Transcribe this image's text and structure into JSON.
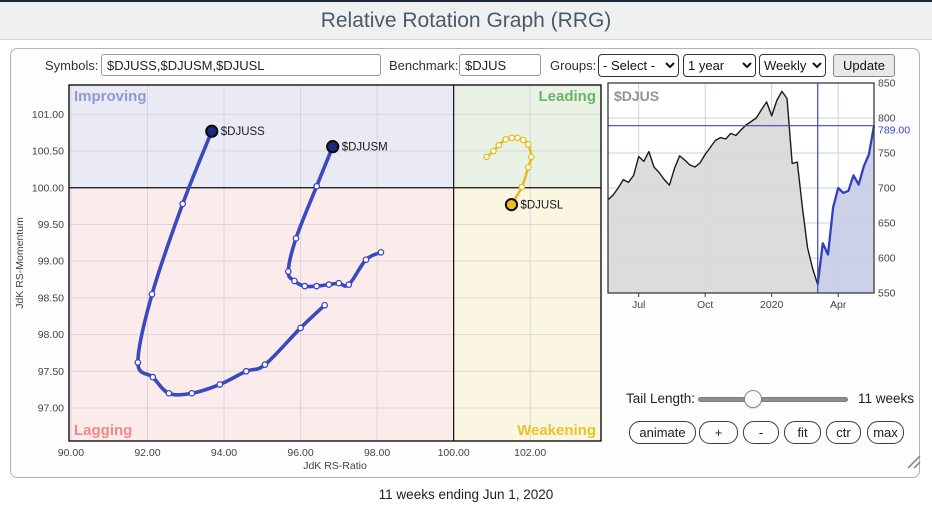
{
  "header": {
    "title": "Relative Rotation Graph (RRG)"
  },
  "toolbar": {
    "symbols_label": "Symbols:",
    "symbols_value": "$DJUSS,$DJUSM,$DJUSL",
    "benchmark_label": "Benchmark:",
    "benchmark_value": "$DJUS",
    "groups_label": "Groups:",
    "groups_value": "- Select -",
    "period_value": "1 year",
    "frequency_value": "Weekly",
    "update_label": "Update"
  },
  "controls": {
    "tail_label": "Tail Length:",
    "tail_value": "11 weeks",
    "buttons": [
      "animate",
      "+",
      "-",
      "fit",
      "ctr",
      "max"
    ]
  },
  "footer": {
    "caption": "11 weeks ending Jun 1, 2020"
  },
  "colors": {
    "accent_blue": "#3848c0",
    "trail_blue": "#3949c0",
    "trail_blue_head": "#1b2a80",
    "trail_yellow": "#e7bc1e",
    "trail_yellow_head": "#eebe18",
    "grid": "#cdd0da",
    "price_black": "#1a1a1a",
    "price_gray_fill": "#d8d8d8",
    "price_blue": "#3340bb",
    "price_blue_fill": "#c7cbe6"
  },
  "chart_data": [
    {
      "type": "scatter",
      "name": "rrg",
      "xlabel": "JdK RS-Ratio",
      "ylabel": "JdK RS-Momentum",
      "xlim": [
        89.95,
        103.85
      ],
      "ylim": [
        96.55,
        101.4
      ],
      "xticks": [
        "90.00",
        "92.00",
        "94.00",
        "96.00",
        "98.00",
        "100.00",
        "102.00"
      ],
      "yticks": [
        "97.00",
        "97.50",
        "98.00",
        "98.50",
        "99.00",
        "99.50",
        "100.00",
        "100.50",
        "101.00"
      ],
      "center_x": 100,
      "center_y": 100,
      "quadrants": [
        {
          "name": "Improving",
          "corner": "top-left",
          "bg": "#e9eaf3",
          "label_color": "#9098d6"
        },
        {
          "name": "Leading",
          "corner": "top-right",
          "bg": "#eaf2e5",
          "label_color": "#67b567"
        },
        {
          "name": "Lagging",
          "corner": "bottom-left",
          "bg": "#fbebeb",
          "label_color": "#f08a8a"
        },
        {
          "name": "Weakening",
          "corner": "bottom-right",
          "bg": "#fbf6e2",
          "label_color": "#e9c428"
        }
      ],
      "series": [
        {
          "name": "$DJUSS",
          "color": "#3949c0",
          "head_color": "#1b2a80",
          "line_width": 3.6,
          "points": [
            [
              96.63,
              98.4
            ],
            [
              96.0,
              98.09
            ],
            [
              95.07,
              97.59
            ],
            [
              94.58,
              97.5
            ],
            [
              93.89,
              97.32
            ],
            [
              93.16,
              97.2
            ],
            [
              92.56,
              97.2
            ],
            [
              92.14,
              97.42
            ],
            [
              91.75,
              97.62
            ],
            [
              92.12,
              98.55
            ],
            [
              92.92,
              99.78
            ],
            [
              93.68,
              100.77
            ]
          ]
        },
        {
          "name": "$DJUSM",
          "color": "#3949c0",
          "head_color": "#1b2a80",
          "line_width": 3.6,
          "points": [
            [
              98.1,
              99.12
            ],
            [
              97.71,
              99.02
            ],
            [
              97.26,
              98.68
            ],
            [
              97.0,
              98.7
            ],
            [
              96.74,
              98.68
            ],
            [
              96.42,
              98.66
            ],
            [
              96.11,
              98.66
            ],
            [
              95.84,
              98.73
            ],
            [
              95.68,
              98.86
            ],
            [
              95.88,
              99.31
            ],
            [
              96.42,
              100.02
            ],
            [
              96.84,
              100.56
            ]
          ]
        },
        {
          "name": "$DJUSL",
          "color": "#e7bc1e",
          "head_color": "#eebe18",
          "line_width": 2.6,
          "points": [
            [
              100.86,
              100.42
            ],
            [
              101.04,
              100.5
            ],
            [
              101.18,
              100.58
            ],
            [
              101.36,
              100.66
            ],
            [
              101.52,
              100.68
            ],
            [
              101.67,
              100.68
            ],
            [
              101.82,
              100.65
            ],
            [
              101.95,
              100.59
            ],
            [
              102.03,
              100.42
            ],
            [
              101.95,
              100.28
            ],
            [
              101.78,
              100.01
            ],
            [
              101.51,
              99.77
            ]
          ]
        }
      ]
    },
    {
      "type": "area",
      "name": "benchmark-price",
      "title": "$DJUS",
      "ylim": [
        550,
        850
      ],
      "yticks": [
        "850",
        "800",
        "750",
        "700",
        "650",
        "600",
        "550"
      ],
      "x_months": [
        {
          "label": "Jul",
          "index": 6
        },
        {
          "label": "Oct",
          "index": 19
        },
        {
          "label": "2020",
          "index": 32
        },
        {
          "label": "Apr",
          "index": 45
        }
      ],
      "values": [
        683,
        690,
        700,
        712,
        708,
        718,
        745,
        738,
        752,
        730,
        722,
        712,
        704,
        728,
        746,
        740,
        733,
        730,
        736,
        748,
        758,
        768,
        772,
        770,
        778,
        775,
        783,
        790,
        795,
        800,
        812,
        823,
        803,
        825,
        838,
        828,
        735,
        737,
        672,
        615,
        585,
        562,
        621,
        605,
        672,
        700,
        693,
        696,
        718,
        705,
        731,
        748,
        789
      ],
      "tail_start_index": 41,
      "hline_value": 789,
      "hline_label": "789.00"
    }
  ]
}
